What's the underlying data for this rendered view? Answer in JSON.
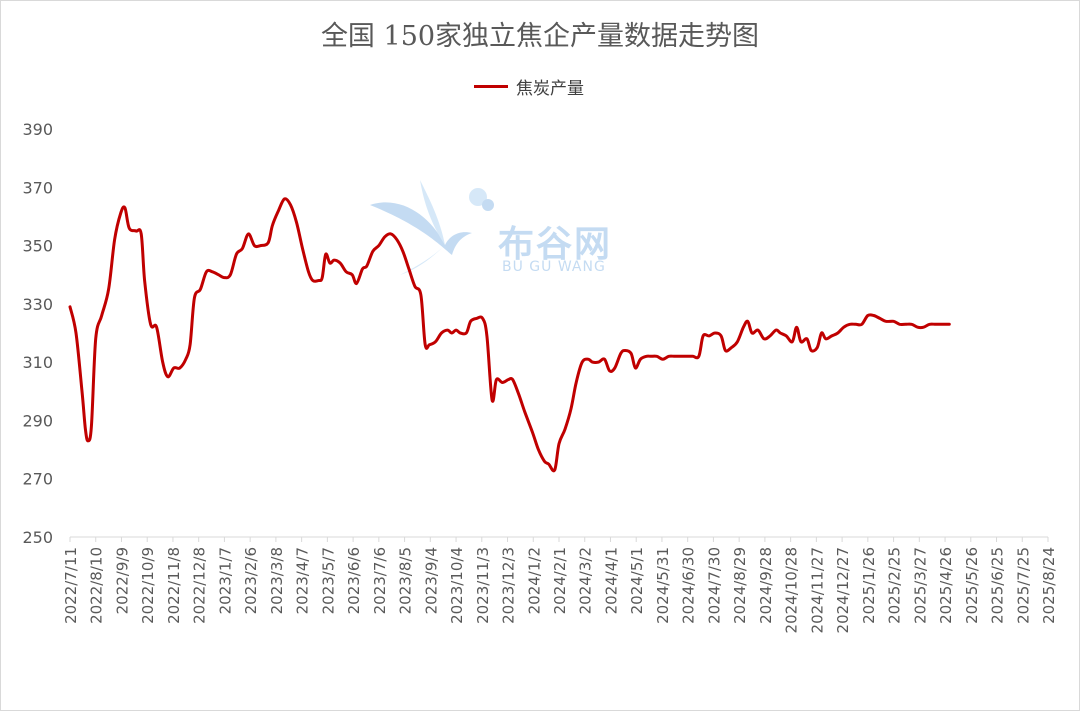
{
  "title": "全国 150家独立焦企产量数据走势图",
  "watermark": {
    "cn": "布谷网",
    "en": "BU GU WANG",
    "color": "#2f80d1"
  },
  "chart_data": {
    "type": "line",
    "title": "全国 150家独立焦企产量数据走势图",
    "xlabel": "",
    "ylabel": "",
    "ylim": [
      250,
      390
    ],
    "yticks": [
      250,
      270,
      290,
      310,
      330,
      350,
      370,
      390
    ],
    "grid": false,
    "legend_position": "top-center",
    "x_tick_labels": [
      "2022/7/11",
      "2022/8/10",
      "2022/9/9",
      "2022/10/9",
      "2022/11/8",
      "2022/12/8",
      "2023/1/7",
      "2023/2/6",
      "2023/3/8",
      "2023/4/7",
      "2023/5/7",
      "2023/6/6",
      "2023/7/6",
      "2023/8/5",
      "2023/9/4",
      "2023/10/4",
      "2023/11/3",
      "2023/12/3",
      "2024/1/2",
      "2024/2/1",
      "2024/3/2",
      "2024/4/1",
      "2024/5/1",
      "2024/5/31",
      "2024/6/30",
      "2024/7/30",
      "2024/8/29",
      "2024/9/28",
      "2024/10/28",
      "2024/11/27",
      "2024/12/27",
      "2025/1/26",
      "2025/2/25",
      "2025/3/27",
      "2025/4/26",
      "2025/5/26",
      "2025/6/25",
      "2025/7/25",
      "2025/8/24"
    ],
    "series": [
      {
        "name": "焦炭产量",
        "color": "#c00000",
        "points": [
          [
            "2022/7/11",
            329
          ],
          [
            "2022/7/18",
            320
          ],
          [
            "2022/7/25",
            300
          ],
          [
            "2022/7/29",
            287
          ],
          [
            "2022/8/1",
            283
          ],
          [
            "2022/8/5",
            288
          ],
          [
            "2022/8/10",
            318
          ],
          [
            "2022/8/17",
            326
          ],
          [
            "2022/8/25",
            335
          ],
          [
            "2022/9/1",
            352
          ],
          [
            "2022/9/8",
            361
          ],
          [
            "2022/9/13",
            363
          ],
          [
            "2022/9/18",
            356
          ],
          [
            "2022/9/26",
            355
          ],
          [
            "2022/10/2",
            354
          ],
          [
            "2022/10/6",
            338
          ],
          [
            "2022/10/13",
            323
          ],
          [
            "2022/10/20",
            322
          ],
          [
            "2022/10/27",
            310
          ],
          [
            "2022/11/2",
            305
          ],
          [
            "2022/11/9",
            308
          ],
          [
            "2022/11/16",
            308
          ],
          [
            "2022/11/23",
            311
          ],
          [
            "2022/11/28",
            316
          ],
          [
            "2022/12/3",
            332
          ],
          [
            "2022/12/10",
            335
          ],
          [
            "2022/12/17",
            341
          ],
          [
            "2022/12/24",
            341
          ],
          [
            "2022/12/31",
            340
          ],
          [
            "2023/1/7",
            339
          ],
          [
            "2023/1/14",
            340
          ],
          [
            "2023/1/21",
            347
          ],
          [
            "2023/1/28",
            349
          ],
          [
            "2023/2/4",
            354
          ],
          [
            "2023/2/11",
            350
          ],
          [
            "2023/2/18",
            350
          ],
          [
            "2023/2/27",
            351
          ],
          [
            "2023/3/4",
            357
          ],
          [
            "2023/3/11",
            362
          ],
          [
            "2023/3/18",
            366
          ],
          [
            "2023/3/25",
            364
          ],
          [
            "2023/4/1",
            358
          ],
          [
            "2023/4/8",
            349
          ],
          [
            "2023/4/15",
            341
          ],
          [
            "2023/4/20",
            338
          ],
          [
            "2023/4/27",
            338
          ],
          [
            "2023/5/1",
            339
          ],
          [
            "2023/5/5",
            347
          ],
          [
            "2023/5/10",
            344
          ],
          [
            "2023/5/15",
            345
          ],
          [
            "2023/5/22",
            344
          ],
          [
            "2023/5/29",
            341
          ],
          [
            "2023/6/5",
            340
          ],
          [
            "2023/6/10",
            337
          ],
          [
            "2023/6/17",
            342
          ],
          [
            "2023/6/22",
            343
          ],
          [
            "2023/6/29",
            348
          ],
          [
            "2023/7/6",
            350
          ],
          [
            "2023/7/13",
            353
          ],
          [
            "2023/7/20",
            354
          ],
          [
            "2023/7/27",
            352
          ],
          [
            "2023/8/3",
            348
          ],
          [
            "2023/8/10",
            342
          ],
          [
            "2023/8/17",
            336
          ],
          [
            "2023/8/24",
            333
          ],
          [
            "2023/8/29",
            316
          ],
          [
            "2023/9/3",
            316
          ],
          [
            "2023/9/10",
            317
          ],
          [
            "2023/9/17",
            320
          ],
          [
            "2023/9/24",
            321
          ],
          [
            "2023/9/29",
            320
          ],
          [
            "2023/10/4",
            321
          ],
          [
            "2023/10/9",
            320
          ],
          [
            "2023/10/16",
            320
          ],
          [
            "2023/10/21",
            324
          ],
          [
            "2023/10/28",
            325
          ],
          [
            "2023/11/4",
            325
          ],
          [
            "2023/11/9",
            319
          ],
          [
            "2023/11/15",
            297
          ],
          [
            "2023/11/20",
            304
          ],
          [
            "2023/11/27",
            303
          ],
          [
            "2023/12/4",
            304
          ],
          [
            "2023/12/9",
            304
          ],
          [
            "2023/12/16",
            299
          ],
          [
            "2023/12/23",
            293
          ],
          [
            "2024/1/1",
            286
          ],
          [
            "2024/1/8",
            280
          ],
          [
            "2024/1/15",
            276
          ],
          [
            "2024/1/20",
            275
          ],
          [
            "2024/1/27",
            273
          ],
          [
            "2024/2/1",
            282
          ],
          [
            "2024/2/8",
            287
          ],
          [
            "2024/2/15",
            294
          ],
          [
            "2024/2/21",
            303
          ],
          [
            "2024/2/28",
            310
          ],
          [
            "2024/3/6",
            311
          ],
          [
            "2024/3/11",
            310
          ],
          [
            "2024/3/18",
            310
          ],
          [
            "2024/3/25",
            311
          ],
          [
            "2024/3/31",
            307
          ],
          [
            "2024/4/6",
            308
          ],
          [
            "2024/4/13",
            313
          ],
          [
            "2024/4/18",
            314
          ],
          [
            "2024/4/25",
            313
          ],
          [
            "2024/4/30",
            308
          ],
          [
            "2024/5/6",
            311
          ],
          [
            "2024/5/13",
            312
          ],
          [
            "2024/5/18",
            312
          ],
          [
            "2024/5/25",
            312
          ],
          [
            "2024/6/1",
            311
          ],
          [
            "2024/6/8",
            312
          ],
          [
            "2024/6/15",
            312
          ],
          [
            "2024/6/22",
            312
          ],
          [
            "2024/6/29",
            312
          ],
          [
            "2024/7/6",
            312
          ],
          [
            "2024/7/13",
            312
          ],
          [
            "2024/7/18",
            319
          ],
          [
            "2024/7/25",
            319
          ],
          [
            "2024/8/1",
            320
          ],
          [
            "2024/8/8",
            319
          ],
          [
            "2024/8/13",
            314
          ],
          [
            "2024/8/20",
            315
          ],
          [
            "2024/8/27",
            317
          ],
          [
            "2024/9/3",
            322
          ],
          [
            "2024/9/8",
            324
          ],
          [
            "2024/9/13",
            320
          ],
          [
            "2024/9/20",
            321
          ],
          [
            "2024/9/27",
            318
          ],
          [
            "2024/10/4",
            319
          ],
          [
            "2024/10/11",
            321
          ],
          [
            "2024/10/16",
            320
          ],
          [
            "2024/10/23",
            319
          ],
          [
            "2024/10/30",
            317
          ],
          [
            "2024/11/4",
            322
          ],
          [
            "2024/11/9",
            317
          ],
          [
            "2024/11/16",
            318
          ],
          [
            "2024/11/21",
            314
          ],
          [
            "2024/11/28",
            315
          ],
          [
            "2024/12/3",
            320
          ],
          [
            "2024/12/8",
            318
          ],
          [
            "2024/12/15",
            319
          ],
          [
            "2024/12/22",
            320
          ],
          [
            "2024/12/29",
            322
          ],
          [
            "2025/1/5",
            323
          ],
          [
            "2025/1/12",
            323
          ],
          [
            "2025/1/19",
            323
          ],
          [
            "2025/1/26",
            326
          ],
          [
            "2025/2/2",
            326
          ],
          [
            "2025/2/9",
            325
          ],
          [
            "2025/2/16",
            324
          ],
          [
            "2025/2/25",
            324
          ],
          [
            "2025/3/4",
            323
          ],
          [
            "2025/3/11",
            323
          ],
          [
            "2025/3/18",
            323
          ],
          [
            "2025/3/25",
            322
          ],
          [
            "2025/4/1",
            322
          ],
          [
            "2025/4/8",
            323
          ],
          [
            "2025/4/15",
            323
          ],
          [
            "2025/4/22",
            323
          ],
          [
            "2025/5/1",
            323
          ]
        ]
      }
    ]
  }
}
